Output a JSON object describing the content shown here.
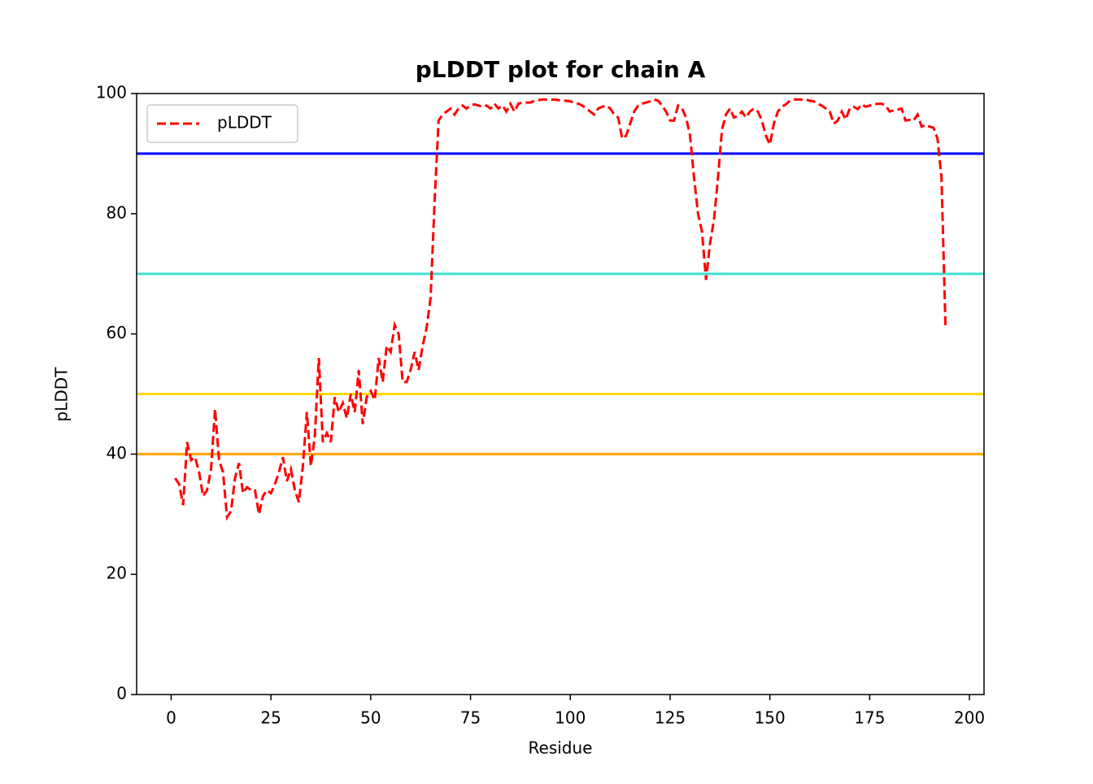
{
  "chart_data": {
    "type": "line",
    "title": "pLDDT plot for chain A",
    "xlabel": "Residue",
    "ylabel": "pLDDT",
    "x": [
      1,
      2,
      3,
      4,
      5,
      6,
      7,
      8,
      9,
      10,
      11,
      12,
      13,
      14,
      15,
      16,
      17,
      18,
      19,
      20,
      21,
      22,
      23,
      24,
      25,
      26,
      27,
      28,
      29,
      30,
      31,
      32,
      33,
      34,
      35,
      36,
      37,
      38,
      39,
      40,
      41,
      42,
      43,
      44,
      45,
      46,
      47,
      48,
      49,
      50,
      51,
      52,
      53,
      54,
      55,
      56,
      57,
      58,
      59,
      60,
      61,
      62,
      63,
      64,
      65,
      66,
      67,
      68,
      69,
      70,
      71,
      72,
      73,
      74,
      75,
      76,
      77,
      78,
      79,
      80,
      81,
      82,
      83,
      84,
      85,
      86,
      87,
      88,
      89,
      90,
      91,
      92,
      93,
      94,
      95,
      96,
      97,
      98,
      99,
      100,
      101,
      102,
      103,
      104,
      105,
      106,
      107,
      108,
      109,
      110,
      111,
      112,
      113,
      114,
      115,
      116,
      117,
      118,
      119,
      120,
      121,
      122,
      123,
      124,
      125,
      126,
      127,
      128,
      129,
      130,
      131,
      132,
      133,
      134,
      135,
      136,
      137,
      138,
      139,
      140,
      141,
      142,
      143,
      144,
      145,
      146,
      147,
      148,
      149,
      150,
      151,
      152,
      153,
      154,
      155,
      156,
      157,
      158,
      159,
      160,
      161,
      162,
      163,
      164,
      165,
      166,
      167,
      168,
      169,
      170,
      171,
      172,
      173,
      174,
      175,
      176,
      177,
      178,
      179,
      180,
      181,
      182,
      183,
      184,
      185,
      186,
      187,
      188,
      189,
      190,
      191,
      192,
      193,
      194
    ],
    "series": [
      {
        "name": "pLDDT",
        "color": "#ff0000",
        "dashed": true,
        "values": [
          36,
          35,
          31.5,
          42,
          39,
          39.5,
          37,
          33,
          34,
          37.5,
          47.5,
          39,
          37,
          29.5,
          30.5,
          36,
          38.5,
          33.5,
          34.5,
          34,
          34,
          30,
          33,
          34,
          33.5,
          35,
          37,
          39.5,
          35.5,
          37.5,
          34,
          32,
          38,
          47,
          38,
          43,
          56,
          42,
          43.5,
          42,
          49.5,
          47,
          48.5,
          46,
          50,
          47,
          54,
          45,
          49.5,
          50.5,
          49,
          56,
          52,
          58,
          57,
          61.5,
          60,
          52,
          52,
          54,
          57,
          54,
          58,
          61,
          66,
          82,
          95.5,
          96.5,
          97,
          97.5,
          96.5,
          97.5,
          98,
          97.5,
          98,
          98.2,
          98,
          97.8,
          98,
          97.5,
          98.3,
          97.5,
          98,
          97,
          98.3,
          97,
          98.3,
          98.5,
          98.5,
          98.5,
          98.8,
          98.9,
          99,
          99,
          99,
          99,
          98.9,
          98.8,
          98.8,
          98.7,
          98.5,
          98.3,
          98,
          97.5,
          97,
          96.5,
          97.5,
          97.8,
          98,
          97.5,
          96.5,
          96,
          92.5,
          93,
          95,
          97,
          98,
          98.3,
          98.5,
          98.7,
          99,
          98.8,
          98,
          97,
          95.5,
          95.5,
          98,
          97.5,
          96,
          93,
          86,
          80,
          77,
          69,
          75,
          79,
          86,
          94,
          96.5,
          97.5,
          96,
          96.3,
          97,
          96,
          97,
          97.5,
          97,
          95.5,
          93,
          91.5,
          95,
          97,
          97.8,
          98.2,
          98.8,
          99,
          99,
          99,
          99,
          98.8,
          98.7,
          98.3,
          98,
          97.5,
          97,
          95,
          95.5,
          97,
          95.7,
          97.5,
          97.8,
          97.4,
          98.2,
          97.8,
          98,
          98.2,
          98.3,
          98.3,
          98,
          97,
          97.2,
          97.3,
          97.5,
          95.5,
          95.6,
          95.5,
          96.5,
          94.5,
          94.8,
          94.5,
          94.3,
          92.5,
          86,
          61
        ]
      }
    ],
    "hlines": [
      {
        "value": 90,
        "color": "#0000ff"
      },
      {
        "value": 70,
        "color": "#40e0d0"
      },
      {
        "value": 50,
        "color": "#ffd700"
      },
      {
        "value": 40,
        "color": "#ffa500"
      }
    ],
    "xlim": [
      -8.65,
      203.65
    ],
    "ylim": [
      0,
      100
    ],
    "xticks": [
      0,
      25,
      50,
      75,
      100,
      125,
      150,
      175,
      200
    ],
    "yticks": [
      0,
      20,
      40,
      60,
      80,
      100
    ],
    "legend": "upper left"
  }
}
